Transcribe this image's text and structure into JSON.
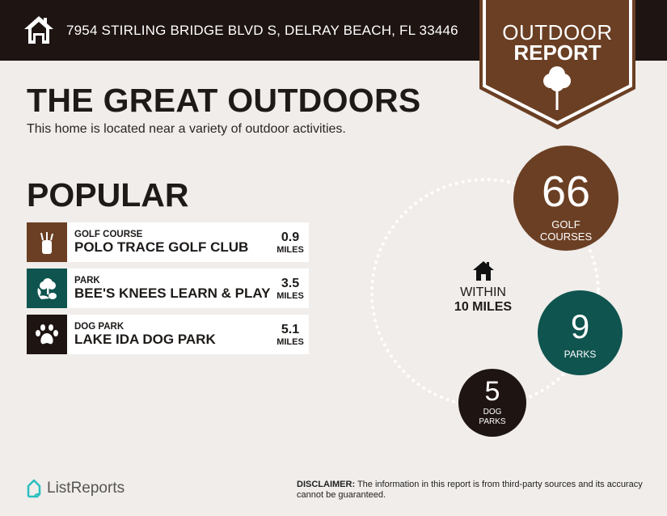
{
  "header": {
    "address": "7954 STIRLING BRIDGE BLVD S, DELRAY BEACH, FL 33446",
    "home_icon": "home-icon"
  },
  "badge": {
    "line1": "OUTDOOR",
    "line2": "REPORT",
    "icon": "tree-icon"
  },
  "title": "THE GREAT OUTDOORS",
  "subtitle": "This home is located near a variety of outdoor activities.",
  "popular": {
    "heading": "POPULAR",
    "items": [
      {
        "category": "GOLF COURSE",
        "name": "POLO TRACE GOLF CLUB",
        "distance": "0.9",
        "unit": "MILES",
        "icon": "golf-bag-icon",
        "color": "#6b3f24"
      },
      {
        "category": "PARK",
        "name": "BEE'S KNEES LEARN & PLAY",
        "distance": "3.5",
        "unit": "MILES",
        "icon": "park-icon",
        "color": "#0f544f"
      },
      {
        "category": "DOG PARK",
        "name": "LAKE IDA DOG PARK",
        "distance": "5.1",
        "unit": "MILES",
        "icon": "paw-icon",
        "color": "#1e1412"
      }
    ]
  },
  "radius": {
    "line1": "WITHIN",
    "line2": "10 MILES"
  },
  "stats": [
    {
      "count": "66",
      "label1": "GOLF",
      "label2": "COURSES",
      "color": "#6b3f24"
    },
    {
      "count": "9",
      "label1": "PARKS",
      "color": "#0f544f"
    },
    {
      "count": "5",
      "label1": "DOG",
      "label2": "PARKS",
      "color": "#1e1412"
    }
  ],
  "footer": {
    "brand": "ListReports",
    "disclaimer_label": "DISCLAIMER:",
    "disclaimer_text": " The information in this report is from third-party sources and its accuracy cannot be guaranteed."
  }
}
